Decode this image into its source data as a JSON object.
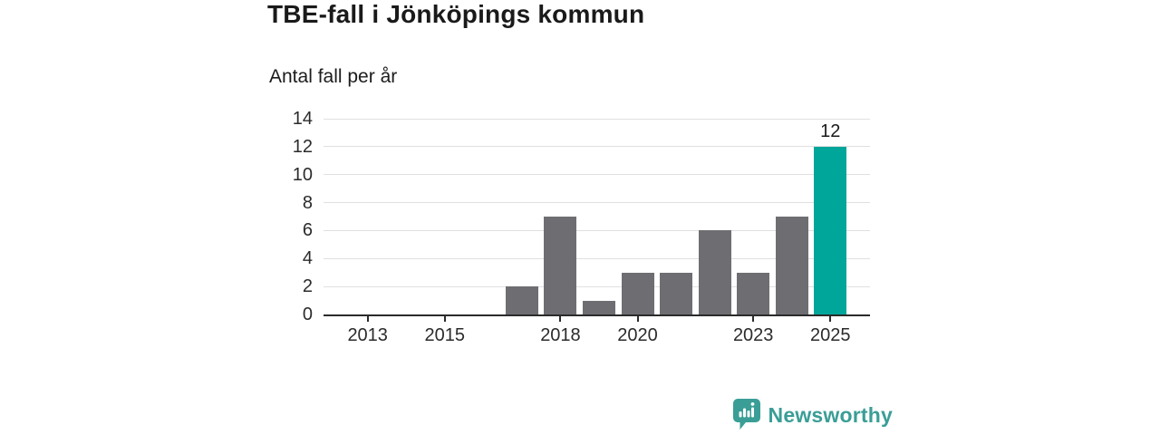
{
  "header": {
    "title": "TBE-fall i Jönköpings kommun",
    "subtitle": "Antal fall per år"
  },
  "chart_data": {
    "type": "bar",
    "title": "TBE-fall i Jönköpings kommun",
    "subtitle": "Antal fall per år",
    "categories": [
      2013,
      2014,
      2015,
      2016,
      2017,
      2018,
      2019,
      2020,
      2021,
      2022,
      2023,
      2024,
      2025
    ],
    "values": [
      0,
      0,
      0,
      0,
      2,
      7,
      1,
      3,
      3,
      6,
      3,
      7,
      12
    ],
    "xlabel": "",
    "ylabel": "Antal fall per år",
    "ylim": [
      0,
      14
    ],
    "yticks": [
      0,
      2,
      4,
      6,
      8,
      10,
      12,
      14
    ],
    "xticks_shown": [
      2013,
      2015,
      2018,
      2020,
      2023,
      2025
    ],
    "grid": "horizontal",
    "legend": "none",
    "highlight_category": 2025,
    "data_labels": {
      "2025": "12"
    },
    "bar_color": "#6e6e72",
    "highlight_color": "#00a69a",
    "gridline_color": "#e0e0e0",
    "axis_color": "#2b2b2b"
  },
  "footer": {
    "brand": "Newsworthy",
    "brand_color": "#3a9e96",
    "logo_icon": "speech-bubble-bar-chart-icon"
  }
}
